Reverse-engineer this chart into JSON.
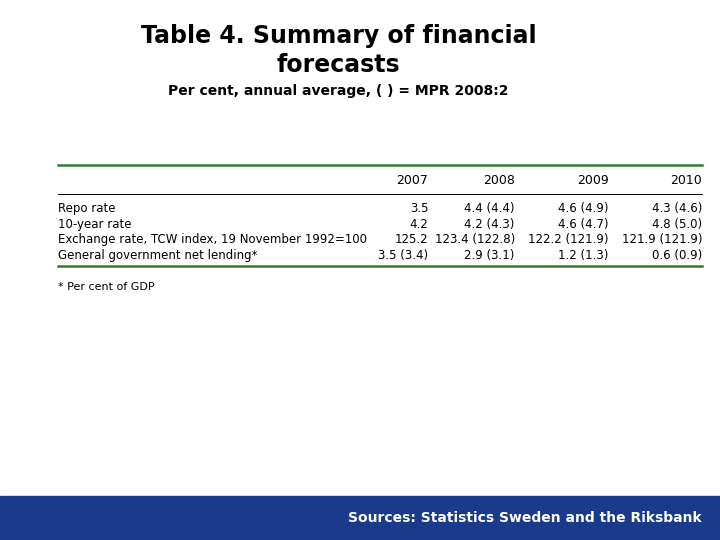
{
  "title": "Table 4. Summary of financial\nforecasts",
  "subtitle": "Per cent, annual average, ( ) = MPR 2008:2",
  "columns": [
    "",
    "2007",
    "2008",
    "2009",
    "2010"
  ],
  "rows": [
    [
      "Repo rate",
      "3.5",
      "4.4 (4.4)",
      "4.6 (4.9)",
      "4.3 (4.6)"
    ],
    [
      "10-year rate",
      "4.2",
      "4.2 (4.3)",
      "4.6 (4.7)",
      "4.8 (5.0)"
    ],
    [
      "Exchange rate, TCW index, 19 November 1992=100",
      "125.2",
      "123.4 (122.8)",
      "122.2 (121.9)",
      "121.9 (121.9)"
    ],
    [
      "General government net lending*",
      "3.5 (3.4)",
      "2.9 (3.1)",
      "1.2 (1.3)",
      "0.6 (0.9)"
    ]
  ],
  "footnote": "* Per cent of GDP",
  "source": "Sources: Statistics Sweden and the Riksbank",
  "bg_color": "#ffffff",
  "title_color": "#000000",
  "subtitle_color": "#000000",
  "source_bar_color": "#1a3a8c",
  "source_text_color": "#ffffff",
  "table_line_color": "#2e7d32",
  "header_line_color": "#000000",
  "title_fontsize": 17,
  "subtitle_fontsize": 10,
  "header_fontsize": 9,
  "cell_fontsize": 8.5,
  "footnote_fontsize": 8,
  "source_fontsize": 10
}
